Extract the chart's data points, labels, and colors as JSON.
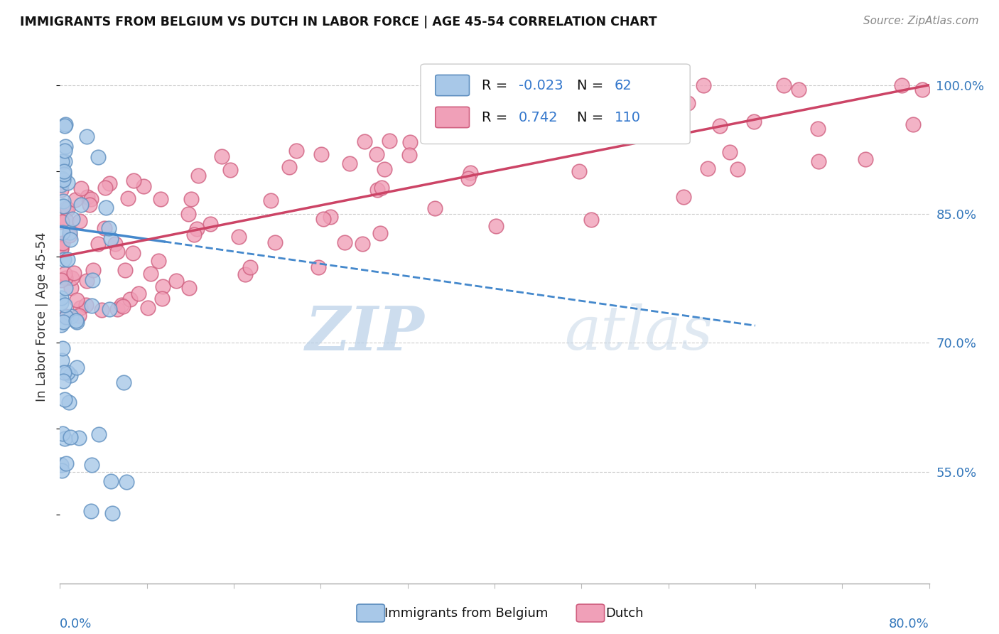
{
  "title": "IMMIGRANTS FROM BELGIUM VS DUTCH IN LABOR FORCE | AGE 45-54 CORRELATION CHART",
  "source": "Source: ZipAtlas.com",
  "ylabel": "In Labor Force | Age 45-54",
  "right_yticks": [
    "55.0%",
    "70.0%",
    "85.0%",
    "100.0%"
  ],
  "right_ytick_vals": [
    0.55,
    0.7,
    0.85,
    1.0
  ],
  "xlim": [
    0.0,
    1.0
  ],
  "ylim": [
    0.42,
    1.04
  ],
  "legend_r_belgium": "-0.023",
  "legend_n_belgium": "62",
  "legend_r_dutch": "0.742",
  "legend_n_dutch": "110",
  "belgium_color": "#a8c8e8",
  "dutch_color": "#f0a0b8",
  "belgium_edge": "#6090c0",
  "dutch_edge": "#d06080",
  "trend_belgium_color": "#4488cc",
  "trend_dutch_color": "#cc4466",
  "watermark_zip": "ZIP",
  "watermark_atlas": "atlas",
  "trend_blue_x0": 0.0,
  "trend_blue_y0": 0.835,
  "trend_blue_x1": 0.8,
  "trend_blue_y1": 0.72,
  "trend_pink_x0": 0.0,
  "trend_pink_y0": 0.8,
  "trend_pink_x1": 1.0,
  "trend_pink_y1": 1.0
}
